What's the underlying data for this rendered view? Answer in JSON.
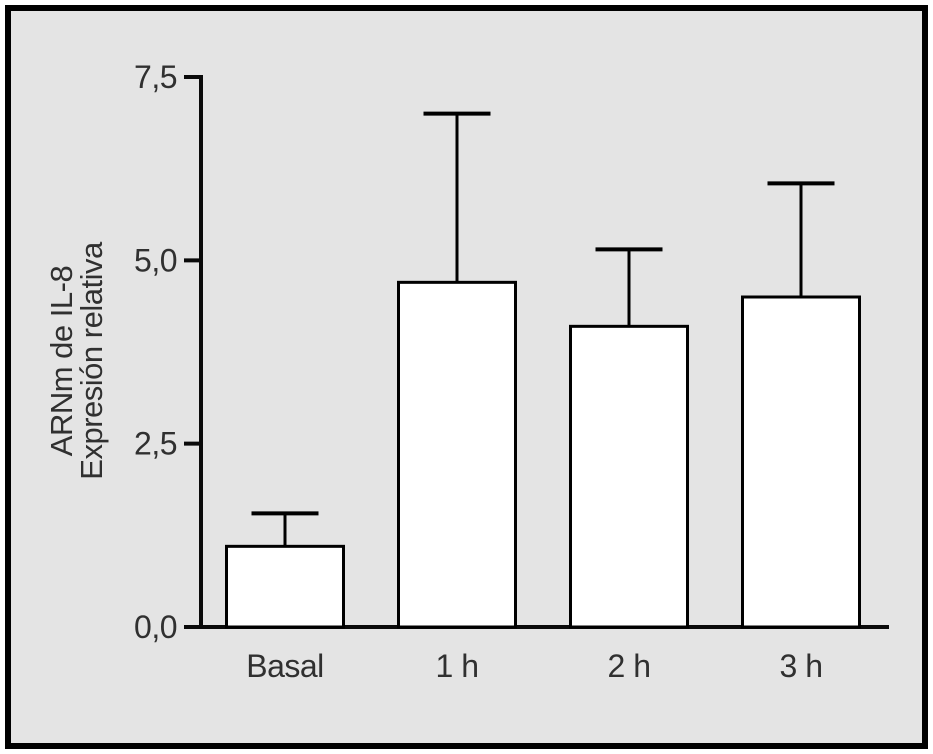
{
  "figure": {
    "page_background": "#ffffff",
    "panel_background": "#e4e4e4",
    "frame_border_color": "#000000"
  },
  "chart_data": {
    "type": "bar",
    "title": "",
    "categories": [
      "Basal",
      "1 h",
      "2 h",
      "3 h"
    ],
    "values": [
      1.1,
      4.7,
      4.1,
      4.5
    ],
    "errors_plus": [
      0.45,
      2.3,
      1.05,
      1.55
    ],
    "ylabel_line1": "ARNm de IL-8",
    "ylabel_line2": "Expresión relativa",
    "xlabel": "",
    "ylim": [
      0,
      7.5
    ],
    "yticks": [
      0,
      2.5,
      5.0,
      7.5
    ],
    "ytick_labels": [
      "0,0",
      "2,5",
      "5,0",
      "7,5"
    ],
    "grid": false,
    "legend_position": "none",
    "error_bar_direction": "upper-only",
    "bar_fill": "#ffffff",
    "bar_stroke": "#000000",
    "axis_color": "#0a0a0a",
    "text_color": "#303030"
  }
}
